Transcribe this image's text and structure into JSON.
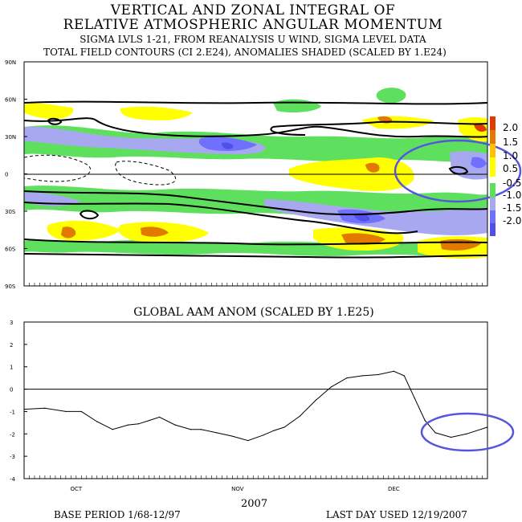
{
  "title": {
    "line1": "VERTICAL AND ZONAL INTEGRAL OF",
    "line2": "RELATIVE ATMOSPHERIC ANGULAR MOMENTUM",
    "line3": "SIGMA LVLS 1-21, FROM REANALYSIS U WIND, SIGMA LEVEL DATA",
    "line4": "TOTAL FIELD CONTOURS (CI 2.E24),  ANOMALIES SHADED (SCALED BY 1.E24)"
  },
  "footer": {
    "year": "2007",
    "base_period": "BASE PERIOD  1/68-12/97",
    "last_day": "LAST DAY USED 12/19/2007"
  },
  "colors": {
    "pos_low": "#ffff00",
    "pos_mid": "#ffc000",
    "pos_high": "#e27a00",
    "pos_max": "#e03a00",
    "neg_low": "#5ee05e",
    "neg_mid": "#a8a8f0",
    "neg_high": "#7070ff",
    "neg_max": "#5050e8",
    "annotation": "#5555dd",
    "line": "#000000"
  },
  "chart_data": [
    {
      "type": "heatmap",
      "title": "",
      "y_ticks": [
        "90N",
        "60N",
        "30N",
        "0",
        "30S",
        "60S",
        "90S"
      ],
      "ylim": [
        -90,
        90
      ],
      "x_range": [
        "2007-09-21",
        "2007-12-19"
      ],
      "legend": {
        "placement": "right",
        "labels": [
          "2.0",
          "1.5",
          "1.0",
          "0.5",
          "-0.5",
          "-1.0",
          "-1.5",
          "-2.0"
        ]
      },
      "annotation": "ellipse around the equatorial band in mid-December"
    },
    {
      "type": "line",
      "title": "GLOBAL AAM ANOM (SCALED BY 1.E25)",
      "x_tick_labels": [
        "OCT",
        "NOV",
        "DEC"
      ],
      "x_tick_dates": [
        "2007-10-01",
        "2007-11-01",
        "2007-12-01"
      ],
      "ylim": [
        -4,
        3
      ],
      "y_ticks": [
        3,
        2,
        1,
        0,
        -1,
        -2,
        -3,
        -4
      ],
      "grid": false,
      "annotation": "ellipse around the mid-December minimum",
      "series": [
        {
          "x": [
            "2007-09-21",
            "2007-09-25",
            "2007-09-29",
            "2007-10-02",
            "2007-10-05",
            "2007-10-08",
            "2007-10-11",
            "2007-10-13",
            "2007-10-15",
            "2007-10-17",
            "2007-10-20",
            "2007-10-23",
            "2007-10-25",
            "2007-10-28",
            "2007-10-31",
            "2007-11-03",
            "2007-11-06",
            "2007-11-08",
            "2007-11-10",
            "2007-11-13",
            "2007-11-16",
            "2007-11-19",
            "2007-11-22",
            "2007-11-25",
            "2007-11-28",
            "2007-12-01",
            "2007-12-03",
            "2007-12-05",
            "2007-12-07",
            "2007-12-09",
            "2007-12-12",
            "2007-12-15",
            "2007-12-19"
          ],
          "values": [
            -0.9,
            -0.85,
            -1.0,
            -1.0,
            -1.45,
            -1.8,
            -1.6,
            -1.55,
            -1.4,
            -1.25,
            -1.6,
            -1.8,
            -1.8,
            -1.95,
            -2.1,
            -2.3,
            -2.05,
            -1.85,
            -1.7,
            -1.2,
            -0.5,
            0.1,
            0.5,
            0.6,
            0.65,
            0.8,
            0.6,
            -0.4,
            -1.4,
            -1.95,
            -2.15,
            -2.0,
            -1.7
          ]
        }
      ]
    }
  ]
}
